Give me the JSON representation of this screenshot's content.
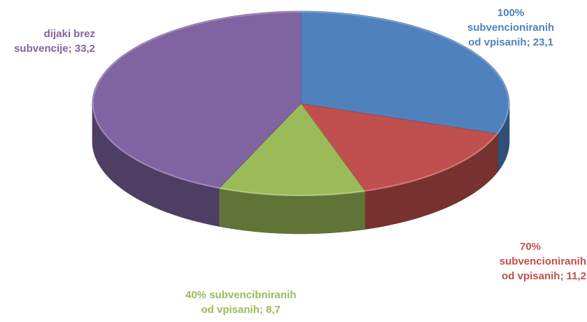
{
  "chart_data": {
    "type": "pie",
    "title": "",
    "slices": [
      {
        "name": "100% subvencioniranih od vpisanih",
        "value": 23.1,
        "color": "#4f81bd",
        "label_lines": [
          "100%",
          "subvencioniranih",
          "od vpisanih; 23,1"
        ]
      },
      {
        "name": "70% subvencioniranih od vpisanih",
        "value": 11.2,
        "color": "#c0504d",
        "label_lines": [
          "70%",
          "subvencioniranih",
          "od vpisanih; 11,2"
        ]
      },
      {
        "name": "40% subvencibniranih od vpisanih",
        "value": 8.7,
        "color": "#9bbb59",
        "label_lines": [
          "40% subvencibniranih",
          "od vpisanih; 8,7"
        ]
      },
      {
        "name": "dijaki brez subvencije",
        "value": 33.2,
        "color": "#8064a2",
        "label_lines": [
          "dijaki brez",
          "subvencije; 33,2"
        ]
      }
    ],
    "start_angle_deg": 0,
    "direction": "clockwise",
    "style": "3d"
  }
}
